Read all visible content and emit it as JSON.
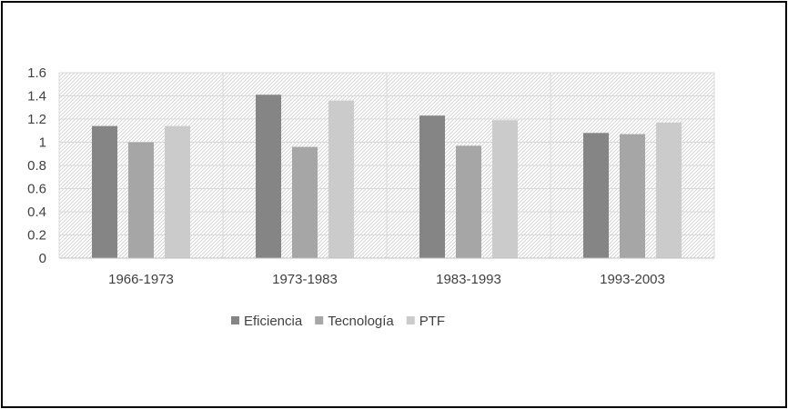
{
  "chart_data": {
    "type": "bar",
    "title": "",
    "xlabel": "",
    "ylabel": "",
    "categories": [
      "1966-1973",
      "1973-1983",
      "1983-1993",
      "1993-2003"
    ],
    "series": [
      {
        "name": "Eficiencia",
        "values": [
          1.14,
          1.41,
          1.23,
          1.08
        ],
        "color": "#858585"
      },
      {
        "name": "Tecnología",
        "values": [
          1.0,
          0.96,
          0.97,
          1.07
        ],
        "color": "#a6a6a6"
      },
      {
        "name": "PTF",
        "values": [
          1.14,
          1.36,
          1.19,
          1.17
        ],
        "color": "#cbcbcb"
      }
    ],
    "ylim": [
      0,
      1.6
    ],
    "yticks": [
      "0",
      "0.2",
      "0.4",
      "0.6",
      "0.8",
      "1",
      "1.2",
      "1.4",
      "1.6"
    ],
    "grid": true,
    "legend": "bottom"
  }
}
